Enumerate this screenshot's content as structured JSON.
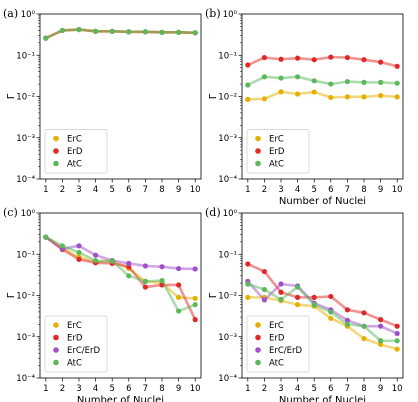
{
  "chart_data": [
    {
      "type": "line",
      "panel_label": "(a)",
      "x": [
        1,
        2,
        3,
        4,
        5,
        6,
        7,
        8,
        9,
        10
      ],
      "xticks": [
        "1",
        "2",
        "3",
        "4",
        "5",
        "6",
        "7",
        "8",
        "9",
        "10"
      ],
      "xlabel": "",
      "ylabel": "Γ",
      "yscale": "log",
      "ylim": [
        0.0001,
        1
      ],
      "yticks": [
        {
          "value": 1,
          "label": "10⁰"
        },
        {
          "value": 0.1,
          "label": "10⁻¹"
        },
        {
          "value": 0.01,
          "label": "10⁻²"
        },
        {
          "value": 0.001,
          "label": "10⁻³"
        },
        {
          "value": 0.0001,
          "label": "10⁻⁴"
        }
      ],
      "legend": "lower-left",
      "series": [
        {
          "name": "ErC",
          "color": "#e6b000",
          "values": [
            0.26,
            0.4,
            0.42,
            0.38,
            0.38,
            0.37,
            0.37,
            0.36,
            0.36,
            0.35
          ]
        },
        {
          "name": "ErD",
          "color": "#e02828",
          "values": [
            0.26,
            0.4,
            0.42,
            0.38,
            0.38,
            0.37,
            0.37,
            0.36,
            0.36,
            0.35
          ]
        },
        {
          "name": "AtC",
          "color": "#5cb85c",
          "values": [
            0.26,
            0.4,
            0.42,
            0.38,
            0.38,
            0.37,
            0.37,
            0.36,
            0.36,
            0.35
          ]
        }
      ]
    },
    {
      "type": "line",
      "panel_label": "(b)",
      "x": [
        1,
        2,
        3,
        4,
        5,
        6,
        7,
        8,
        9,
        10
      ],
      "xticks": [
        "1",
        "2",
        "3",
        "4",
        "5",
        "6",
        "7",
        "8",
        "9",
        "10"
      ],
      "xlabel": "Number of Nuclei",
      "ylabel": "Γ",
      "yscale": "log",
      "ylim": [
        0.0001,
        1
      ],
      "yticks": [
        {
          "value": 1,
          "label": "10⁰"
        },
        {
          "value": 0.1,
          "label": "10⁻¹"
        },
        {
          "value": 0.01,
          "label": "10⁻²"
        },
        {
          "value": 0.001,
          "label": "10⁻³"
        },
        {
          "value": 0.0001,
          "label": "10⁻⁴"
        }
      ],
      "legend": "lower-left",
      "series": [
        {
          "name": "ErC",
          "color": "#e6b000",
          "values": [
            0.0085,
            0.0088,
            0.013,
            0.0115,
            0.0128,
            0.0095,
            0.0098,
            0.0098,
            0.0105,
            0.0098
          ]
        },
        {
          "name": "ErD",
          "color": "#e02828",
          "values": [
            0.058,
            0.088,
            0.08,
            0.085,
            0.078,
            0.09,
            0.088,
            0.078,
            0.068,
            0.054
          ]
        },
        {
          "name": "AtC",
          "color": "#5cb85c",
          "values": [
            0.019,
            0.03,
            0.028,
            0.03,
            0.024,
            0.02,
            0.023,
            0.022,
            0.022,
            0.021
          ]
        }
      ]
    },
    {
      "type": "line",
      "panel_label": "(c)",
      "x": [
        1,
        2,
        3,
        4,
        5,
        6,
        7,
        8,
        9,
        10
      ],
      "xticks": [
        "1",
        "2",
        "3",
        "4",
        "5",
        "6",
        "7",
        "8",
        "9",
        "10"
      ],
      "xlabel": "Number of Nuclei",
      "ylabel": "Γ",
      "yscale": "log",
      "ylim": [
        0.0001,
        1
      ],
      "yticks": [
        {
          "value": 1,
          "label": "10⁰"
        },
        {
          "value": 0.1,
          "label": "10⁻¹"
        },
        {
          "value": 0.01,
          "label": "10⁻²"
        },
        {
          "value": 0.001,
          "label": "10⁻³"
        },
        {
          "value": 0.0001,
          "label": "10⁻⁴"
        }
      ],
      "legend": "lower-left",
      "series": [
        {
          "name": "ErC",
          "color": "#e6b000",
          "values": [
            0.26,
            0.14,
            0.085,
            0.065,
            0.07,
            0.045,
            0.022,
            0.02,
            0.009,
            0.0085
          ]
        },
        {
          "name": "ErD",
          "color": "#e02828",
          "values": [
            0.26,
            0.13,
            0.075,
            0.062,
            0.06,
            0.05,
            0.016,
            0.018,
            0.018,
            0.0026
          ]
        },
        {
          "name": "ErC/ErD",
          "color": "#a050c8",
          "values": [
            0.26,
            0.135,
            0.16,
            0.095,
            0.07,
            0.06,
            0.052,
            0.05,
            0.045,
            0.044
          ]
        },
        {
          "name": "AtC",
          "color": "#5cb85c",
          "values": [
            0.26,
            0.16,
            0.11,
            0.07,
            0.068,
            0.03,
            0.022,
            0.023,
            0.0042,
            0.006
          ]
        }
      ]
    },
    {
      "type": "line",
      "panel_label": "(d)",
      "x": [
        1,
        2,
        3,
        4,
        5,
        6,
        7,
        8,
        9,
        10
      ],
      "xticks": [
        "1",
        "2",
        "3",
        "4",
        "5",
        "6",
        "7",
        "8",
        "9",
        "10"
      ],
      "xlabel": "Number of Nuclei",
      "ylabel": "Γ",
      "yscale": "log",
      "ylim": [
        0.0001,
        1
      ],
      "yticks": [
        {
          "value": 1,
          "label": "10⁰"
        },
        {
          "value": 0.1,
          "label": "10⁻¹"
        },
        {
          "value": 0.01,
          "label": "10⁻²"
        },
        {
          "value": 0.001,
          "label": "10⁻³"
        },
        {
          "value": 0.0001,
          "label": "10⁻⁴"
        }
      ],
      "legend": "lower-left",
      "series": [
        {
          "name": "ErC",
          "color": "#e6b000",
          "values": [
            0.009,
            0.009,
            0.0075,
            0.006,
            0.0055,
            0.0028,
            0.0018,
            0.0009,
            0.00065,
            0.0005
          ]
        },
        {
          "name": "ErD",
          "color": "#e02828",
          "values": [
            0.058,
            0.038,
            0.012,
            0.009,
            0.009,
            0.0095,
            0.0045,
            0.0038,
            0.0026,
            0.0018
          ]
        },
        {
          "name": "ErC/ErD",
          "color": "#a050c8",
          "values": [
            0.022,
            0.0078,
            0.019,
            0.017,
            0.0065,
            0.0045,
            0.0025,
            0.0018,
            0.0018,
            0.0012
          ]
        },
        {
          "name": "AtC",
          "color": "#5cb85c",
          "values": [
            0.019,
            0.014,
            0.008,
            0.016,
            0.006,
            0.004,
            0.002,
            0.0018,
            0.0008,
            0.0008
          ]
        }
      ]
    }
  ]
}
